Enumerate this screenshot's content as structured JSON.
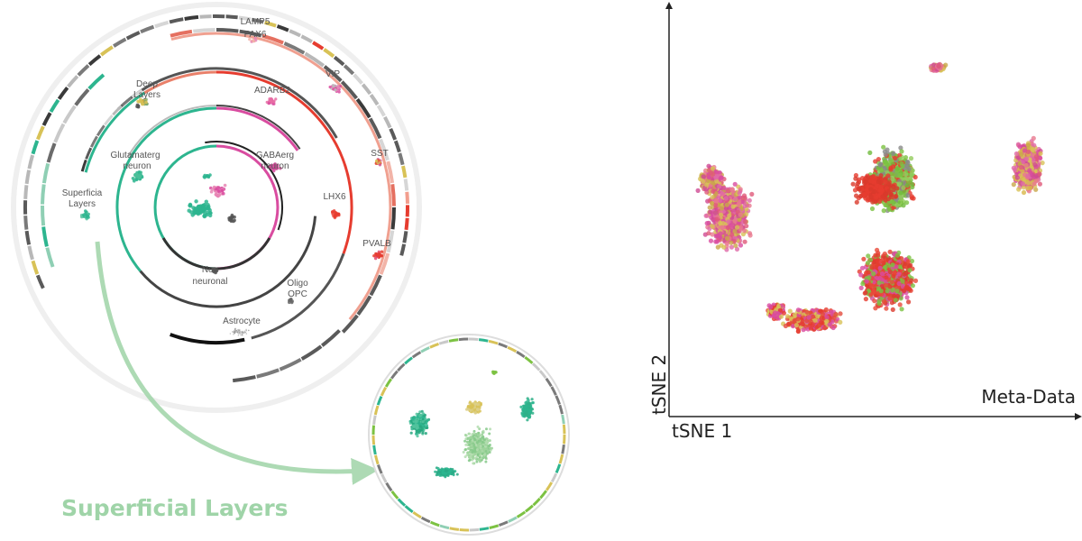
{
  "hierarchy": {
    "labels": {
      "lamp5_pax6": [
        "LAMP5",
        "PAX6"
      ],
      "vip": [
        "VIP"
      ],
      "deep_layers": [
        "Deep",
        "Layers"
      ],
      "adarb2": [
        "ADARB2"
      ],
      "glutamatergic": [
        "Glutamaterg",
        "neuron"
      ],
      "gabaergic": [
        "GABAerg",
        "neuron"
      ],
      "sst": [
        "SST"
      ],
      "superficial_layers": [
        "Superficia",
        "Layers"
      ],
      "lhx6": [
        "LHX6"
      ],
      "pvalb": [
        "PVALB"
      ],
      "non_neuronal": [
        "Non",
        "neuronal"
      ],
      "oligo_opc": [
        "Oligo",
        "OPC"
      ],
      "astrocyte": [
        "Astrocyte"
      ]
    }
  },
  "callout": {
    "title": "Superficial Layers"
  },
  "tsne": {
    "legend_label": "Meta-Data",
    "xlabel": "tSNE 1",
    "ylabel": "tSNE 2"
  },
  "colors": {
    "excitatory_teal": "#2db58f",
    "inhibitory_pink": "#d94ca0",
    "red": "#e63c2f",
    "green": "#7cc242",
    "yellow": "#d8c257",
    "light_green": "#9ed39b",
    "gray": "#6b6b6b",
    "callout_green": "#9fd4a8"
  }
}
